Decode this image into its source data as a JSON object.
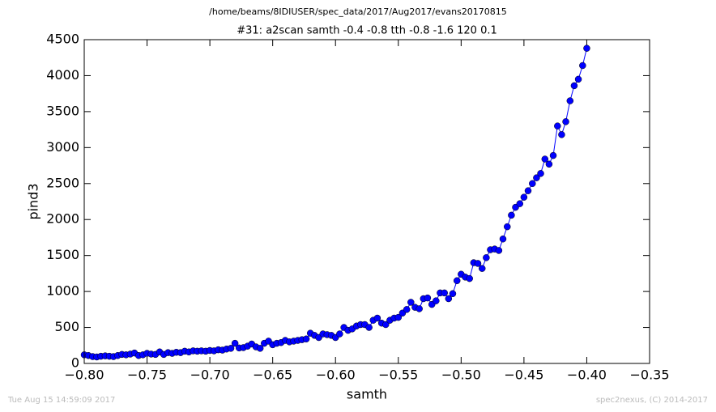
{
  "chart_data": {
    "type": "line",
    "suptitle": "/home/beams/8IDIUSER/spec_data/2017/Aug2017/evans20170815",
    "title": "#31: a2scan  samth -0.4 -0.8  tth -0.8 -1.6  120 0.1",
    "xlabel": "samth",
    "ylabel": "pind3",
    "footer_left": "Tue Aug 15 14:59:09 2017",
    "footer_right": "spec2nexus, (C) 2014-2017",
    "x": [
      -0.8,
      -0.7967,
      -0.7933,
      -0.79,
      -0.7867,
      -0.7833,
      -0.78,
      -0.7767,
      -0.7733,
      -0.77,
      -0.7667,
      -0.7633,
      -0.76,
      -0.7567,
      -0.7533,
      -0.75,
      -0.7467,
      -0.7433,
      -0.74,
      -0.7367,
      -0.7333,
      -0.73,
      -0.7267,
      -0.7233,
      -0.72,
      -0.7167,
      -0.7133,
      -0.71,
      -0.7067,
      -0.7033,
      -0.7,
      -0.6967,
      -0.6933,
      -0.69,
      -0.6867,
      -0.6833,
      -0.68,
      -0.6767,
      -0.6733,
      -0.67,
      -0.6667,
      -0.6633,
      -0.66,
      -0.6567,
      -0.6533,
      -0.65,
      -0.6467,
      -0.6433,
      -0.64,
      -0.6367,
      -0.6333,
      -0.63,
      -0.6267,
      -0.6233,
      -0.62,
      -0.6167,
      -0.6133,
      -0.61,
      -0.6067,
      -0.6033,
      -0.6,
      -0.5967,
      -0.5933,
      -0.59,
      -0.5867,
      -0.5833,
      -0.58,
      -0.5767,
      -0.5733,
      -0.57,
      -0.5667,
      -0.5633,
      -0.56,
      -0.5567,
      -0.5533,
      -0.55,
      -0.5467,
      -0.5433,
      -0.54,
      -0.5367,
      -0.5333,
      -0.53,
      -0.5267,
      -0.5233,
      -0.52,
      -0.5167,
      -0.5133,
      -0.51,
      -0.5067,
      -0.5033,
      -0.5,
      -0.4967,
      -0.4933,
      -0.49,
      -0.4867,
      -0.4833,
      -0.48,
      -0.4767,
      -0.4733,
      -0.47,
      -0.4667,
      -0.4633,
      -0.46,
      -0.4567,
      -0.4533,
      -0.45,
      -0.4467,
      -0.4433,
      -0.44,
      -0.4367,
      -0.4333,
      -0.43,
      -0.4267,
      -0.4233,
      -0.42,
      -0.4167,
      -0.4133,
      -0.41,
      -0.4067,
      -0.4033,
      -0.4
    ],
    "series": [
      {
        "color": "#0000ff",
        "values": [
          120,
          110,
          95,
          90,
          100,
          105,
          100,
          95,
          110,
          125,
          120,
          130,
          145,
          110,
          120,
          140,
          130,
          125,
          160,
          125,
          150,
          140,
          155,
          150,
          170,
          160,
          175,
          170,
          175,
          170,
          180,
          175,
          190,
          185,
          200,
          210,
          280,
          215,
          220,
          240,
          270,
          230,
          210,
          280,
          310,
          260,
          280,
          290,
          320,
          300,
          310,
          320,
          330,
          340,
          420,
          390,
          360,
          410,
          400,
          390,
          360,
          410,
          500,
          460,
          480,
          520,
          540,
          540,
          500,
          600,
          630,
          560,
          540,
          600,
          630,
          640,
          700,
          750,
          850,
          780,
          760,
          900,
          910,
          820,
          870,
          980,
          980,
          900,
          970,
          1150,
          1240,
          1200,
          1180,
          1400,
          1390,
          1320,
          1470,
          1580,
          1590,
          1570,
          1730,
          1900,
          2060,
          2170,
          2220,
          2310,
          2400,
          2500,
          2580,
          2640,
          2840,
          2770,
          2890,
          3300,
          3180,
          3360,
          3650,
          3860,
          3950,
          4140,
          4380
        ]
      }
    ],
    "xlim": [
      -0.8,
      -0.35
    ],
    "xticks": [
      {
        "value": -0.8,
        "label": "−0.80"
      },
      {
        "value": -0.75,
        "label": "−0.75"
      },
      {
        "value": -0.7,
        "label": "−0.70"
      },
      {
        "value": -0.65,
        "label": "−0.65"
      },
      {
        "value": -0.6,
        "label": "−0.60"
      },
      {
        "value": -0.55,
        "label": "−0.55"
      },
      {
        "value": -0.5,
        "label": "−0.50"
      },
      {
        "value": -0.45,
        "label": "−0.45"
      },
      {
        "value": -0.4,
        "label": "−0.40"
      },
      {
        "value": -0.35,
        "label": "−0.35"
      }
    ],
    "ylim": [
      0,
      4500
    ],
    "yticks": [
      0,
      500,
      1000,
      1500,
      2000,
      2500,
      3000,
      3500,
      4000,
      4500
    ]
  }
}
